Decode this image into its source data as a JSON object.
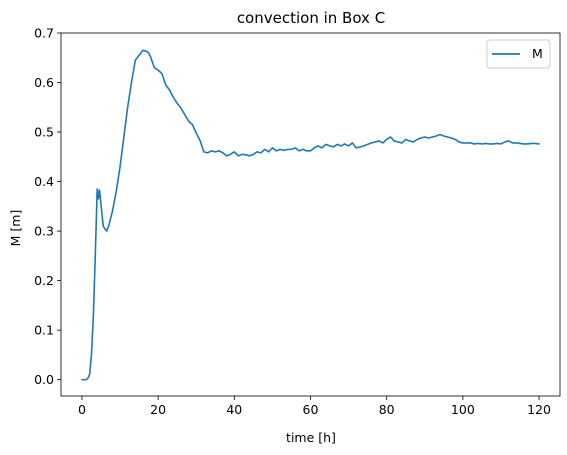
{
  "chart_data": {
    "type": "line",
    "title": "convection in Box C",
    "xlabel": "time [h]",
    "ylabel": "M [m]",
    "xlim": [
      -5.5,
      125.5
    ],
    "ylim": [
      -0.033,
      0.7
    ],
    "xticks": [
      0,
      20,
      40,
      60,
      80,
      100,
      120
    ],
    "yticks": [
      0.0,
      0.1,
      0.2,
      0.3,
      0.4,
      0.5,
      0.6,
      0.7
    ],
    "xtick_labels": [
      "0",
      "20",
      "40",
      "60",
      "80",
      "100",
      "120"
    ],
    "ytick_labels": [
      "0.0",
      "0.1",
      "0.2",
      "0.3",
      "0.4",
      "0.5",
      "0.6",
      "0.7"
    ],
    "grid": false,
    "legend": {
      "position": "upper-right"
    },
    "series": [
      {
        "name": "M",
        "color": "#1f77b4",
        "x": [
          0,
          1,
          1.5,
          2,
          2.5,
          3,
          3.5,
          4,
          4.3,
          4.6,
          5,
          5.3,
          5.6,
          6,
          6.5,
          7,
          7.5,
          8,
          9,
          10,
          11,
          12,
          13,
          14,
          15,
          16,
          17,
          17.5,
          18,
          19,
          20,
          21,
          22,
          23,
          24,
          25,
          26,
          27,
          28,
          29,
          30,
          31,
          32,
          33,
          34,
          35,
          36,
          37,
          38,
          39,
          40,
          41,
          42,
          43,
          44,
          45,
          46,
          47,
          48,
          49,
          50,
          51,
          52,
          53,
          54,
          55,
          56,
          57,
          58,
          59,
          60,
          61,
          62,
          63,
          64,
          65,
          66,
          67,
          68,
          69,
          70,
          71,
          72,
          73,
          74,
          75,
          76,
          77,
          78,
          79,
          80,
          81,
          82,
          83,
          84,
          85,
          86,
          87,
          88,
          89,
          90,
          91,
          92,
          93,
          94,
          95,
          96,
          97,
          98,
          99,
          100,
          101,
          102,
          103,
          104,
          105,
          106,
          107,
          108,
          109,
          110,
          111,
          112,
          113,
          114,
          115,
          116,
          117,
          118,
          119,
          120
        ],
        "y": [
          0.0,
          0.0,
          0.002,
          0.01,
          0.05,
          0.13,
          0.25,
          0.385,
          0.365,
          0.383,
          0.355,
          0.33,
          0.31,
          0.305,
          0.3,
          0.31,
          0.325,
          0.34,
          0.38,
          0.43,
          0.49,
          0.55,
          0.6,
          0.645,
          0.655,
          0.665,
          0.663,
          0.66,
          0.652,
          0.63,
          0.625,
          0.618,
          0.595,
          0.585,
          0.57,
          0.558,
          0.548,
          0.535,
          0.522,
          0.515,
          0.498,
          0.483,
          0.46,
          0.458,
          0.462,
          0.46,
          0.462,
          0.458,
          0.452,
          0.455,
          0.46,
          0.452,
          0.455,
          0.454,
          0.452,
          0.455,
          0.46,
          0.458,
          0.465,
          0.46,
          0.468,
          0.462,
          0.465,
          0.463,
          0.465,
          0.465,
          0.468,
          0.462,
          0.465,
          0.462,
          0.462,
          0.468,
          0.472,
          0.468,
          0.475,
          0.472,
          0.47,
          0.475,
          0.472,
          0.476,
          0.472,
          0.478,
          0.468,
          0.47,
          0.472,
          0.475,
          0.478,
          0.48,
          0.482,
          0.478,
          0.485,
          0.49,
          0.482,
          0.48,
          0.478,
          0.485,
          0.482,
          0.48,
          0.485,
          0.488,
          0.49,
          0.488,
          0.49,
          0.492,
          0.495,
          0.492,
          0.49,
          0.488,
          0.485,
          0.48,
          0.478,
          0.478,
          0.478,
          0.476,
          0.477,
          0.476,
          0.477,
          0.476,
          0.476,
          0.477,
          0.476,
          0.48,
          0.482,
          0.478,
          0.478,
          0.477,
          0.476,
          0.476,
          0.477,
          0.477,
          0.476
        ]
      }
    ]
  }
}
